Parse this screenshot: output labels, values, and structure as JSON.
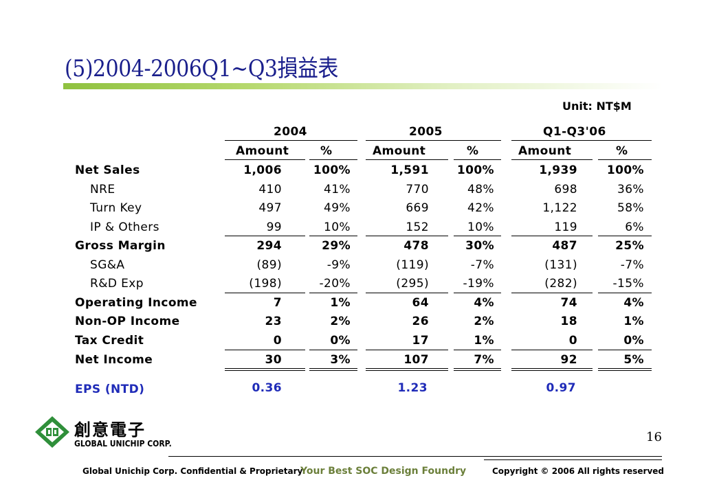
{
  "title": "(5)2004-2006Q1~Q3損益表",
  "unit": "Unit: NT$M",
  "periods": [
    "2004",
    "2005",
    "Q1-Q3'06"
  ],
  "col_headers": {
    "amount": "Amount",
    "pct": "%"
  },
  "rows": [
    {
      "label": "Net Sales",
      "v": [
        "1,006",
        "100%",
        "1,591",
        "100%",
        "1,939",
        "100%"
      ]
    },
    {
      "label": "NRE",
      "v": [
        "410",
        "41%",
        "770",
        "48%",
        "698",
        "36%"
      ]
    },
    {
      "label": "Turn Key",
      "v": [
        "497",
        "49%",
        "669",
        "42%",
        "1,122",
        "58%"
      ]
    },
    {
      "label": "IP & Others",
      "v": [
        "99",
        "10%",
        "152",
        "10%",
        "119",
        "6%"
      ]
    },
    {
      "label": "Gross Margin",
      "v": [
        "294",
        "29%",
        "478",
        "30%",
        "487",
        "25%"
      ]
    },
    {
      "label": "SG&A",
      "v": [
        "(89)",
        "-9%",
        "(119)",
        "-7%",
        "(131)",
        "-7%"
      ]
    },
    {
      "label": "R&D Exp",
      "v": [
        "(198)",
        "-20%",
        "(295)",
        "-19%",
        "(282)",
        "-15%"
      ]
    },
    {
      "label": "Operating Income",
      "v": [
        "7",
        "1%",
        "64",
        "4%",
        "74",
        "4%"
      ]
    },
    {
      "label": "Non-OP Income",
      "v": [
        "23",
        "2%",
        "26",
        "2%",
        "18",
        "1%"
      ]
    },
    {
      "label": "Tax Credit",
      "v": [
        "0",
        "0%",
        "17",
        "1%",
        "0",
        "0%"
      ]
    },
    {
      "label": "Net Income",
      "v": [
        "30",
        "3%",
        "107",
        "7%",
        "92",
        "5%"
      ]
    }
  ],
  "eps": {
    "label": "EPS (NTD)",
    "v": [
      "0.36",
      "1.23",
      "0.97"
    ]
  },
  "logo": {
    "cn": "創意電子",
    "en": "GLOBAL UNICHIP CORP.",
    "icon": "gucc-logo-icon"
  },
  "page_number": "16",
  "footer": {
    "left": "Global Unichip Corp. Confidential & Proprietary",
    "middle": "Your Best SOC Design Foundry",
    "right": "Copyright ©  2006 All rights reserved"
  },
  "colors": {
    "title": "#1a1f8c",
    "eps": "#1f2bb8",
    "accent_green": "#8fc13f",
    "slogan": "#6b7f3a"
  }
}
